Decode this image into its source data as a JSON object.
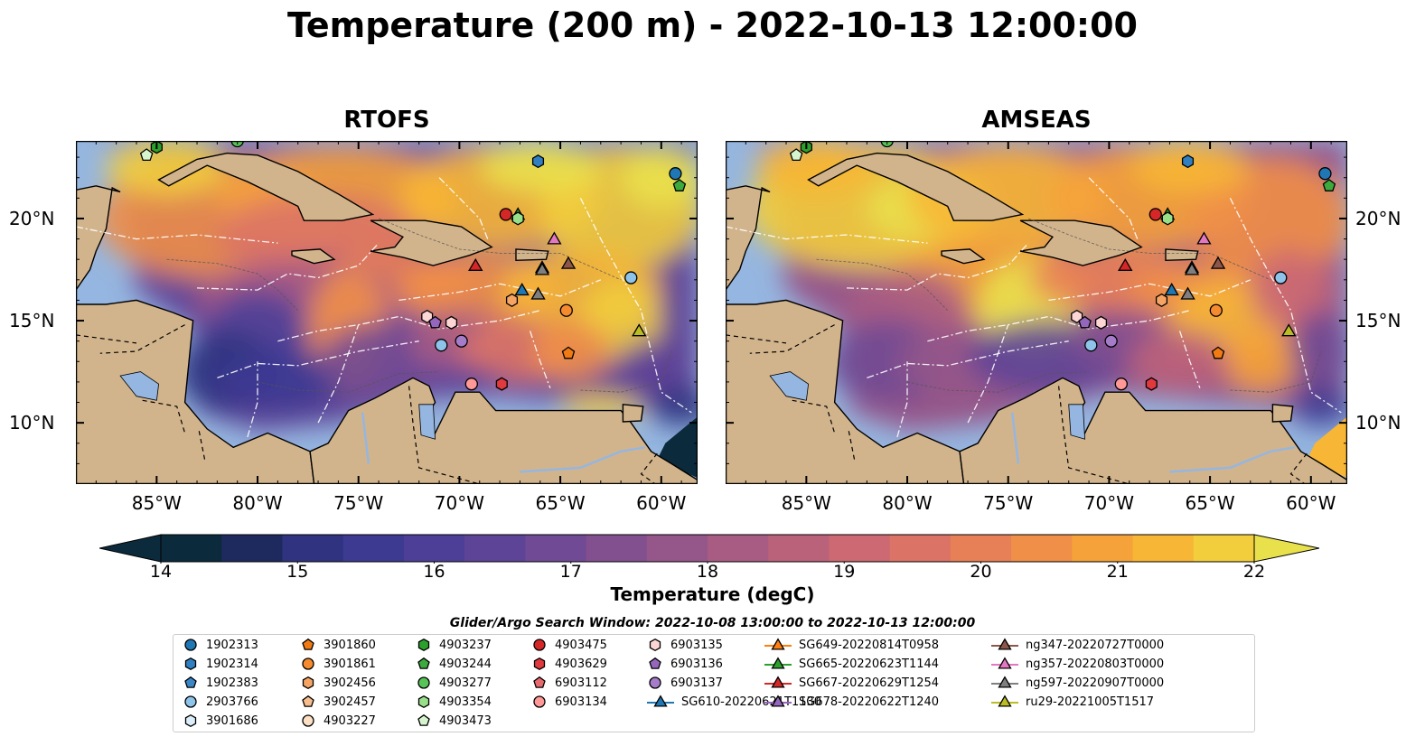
{
  "title": "Temperature (200 m) - 2022-10-13 12:00:00",
  "panels": [
    {
      "title": "RTOFS",
      "id": "rtofs"
    },
    {
      "title": "AMSEAS",
      "id": "amseas"
    }
  ],
  "axes": {
    "lon_ticks": [
      "85°W",
      "80°W",
      "75°W",
      "70°W",
      "65°W",
      "60°W"
    ],
    "lat_ticks": [
      "20°N",
      "15°N",
      "10°N"
    ],
    "lon_range": [
      -89,
      -58.2
    ],
    "lat_range": [
      7,
      23.8
    ]
  },
  "colorbar": {
    "label": "Temperature (degC)",
    "ticks": [
      "14",
      "15",
      "16",
      "17",
      "18",
      "19",
      "20",
      "21",
      "22"
    ],
    "range": [
      14,
      22
    ],
    "colors": [
      "#0b2a3c",
      "#1e2a5e",
      "#2f3380",
      "#3d3a92",
      "#4d3f98",
      "#5e4497",
      "#704a94",
      "#82508f",
      "#955689",
      "#a85c83",
      "#bb627b",
      "#cc6972",
      "#db7366",
      "#e88057",
      "#f08f48",
      "#f5a23a",
      "#f7b635",
      "#f2cd3c",
      "#e9e14c"
    ],
    "ocean_fill": "#95b6e0",
    "land_fill": "#d2b48c"
  },
  "search_window": "Glider/Argo Search Window: 2022-10-08 13:00:00 to 2022-10-13 12:00:00",
  "legend": [
    {
      "label": "1902313",
      "marker": "circle",
      "color": "#1f77b4"
    },
    {
      "label": "1902314",
      "marker": "hexagon",
      "color": "#2f7fc1"
    },
    {
      "label": "1902383",
      "marker": "pentagon",
      "color": "#3a87c8"
    },
    {
      "label": "2903766",
      "marker": "circle",
      "color": "#8ec4ea"
    },
    {
      "label": "3901686",
      "marker": "hexagon",
      "color": "#dceefa"
    },
    {
      "label": "3901860",
      "marker": "pentagon",
      "color": "#f27a12"
    },
    {
      "label": "3901861",
      "marker": "circle",
      "color": "#f58a2e"
    },
    {
      "label": "3902456",
      "marker": "hexagon",
      "color": "#f6a464"
    },
    {
      "label": "3902457",
      "marker": "pentagon",
      "color": "#f8bd8c"
    },
    {
      "label": "4903227",
      "marker": "circle",
      "color": "#fde0c4"
    },
    {
      "label": "4903237",
      "marker": "hexagon",
      "color": "#2ca02c"
    },
    {
      "label": "4903244",
      "marker": "pentagon",
      "color": "#3caa3c"
    },
    {
      "label": "4903277",
      "marker": "circle",
      "color": "#57c457"
    },
    {
      "label": "4903354",
      "marker": "hexagon",
      "color": "#98df8a"
    },
    {
      "label": "4903473",
      "marker": "pentagon",
      "color": "#d6f5cf"
    },
    {
      "label": "4903475",
      "marker": "circle",
      "color": "#d62728"
    },
    {
      "label": "4903629",
      "marker": "hexagon",
      "color": "#e0393e"
    },
    {
      "label": "6903112",
      "marker": "pentagon",
      "color": "#e86a6e"
    },
    {
      "label": "6903134",
      "marker": "circle",
      "color": "#ff9896"
    },
    {
      "label": "6903135",
      "marker": "hexagon",
      "color": "#fcd5d4"
    },
    {
      "label": "6903136",
      "marker": "pentagon",
      "color": "#9467bd"
    },
    {
      "label": "6903137",
      "marker": "circle",
      "color": "#a47cc8"
    },
    {
      "label": "SG610-20220621T1130",
      "marker": "triangle-line",
      "color": "#1f77b4"
    },
    {
      "label": "SG649-20220814T0958",
      "marker": "triangle-line",
      "color": "#ff7f0e"
    },
    {
      "label": "SG665-20220623T1144",
      "marker": "triangle-line",
      "color": "#2ca02c"
    },
    {
      "label": "SG667-20220629T1254",
      "marker": "triangle-line",
      "color": "#d62728"
    },
    {
      "label": "SG678-20220622T1240",
      "marker": "triangle-line",
      "color": "#9467bd"
    },
    {
      "label": "ng347-20220727T0000",
      "marker": "triangle-line",
      "color": "#8c564b"
    },
    {
      "label": "ng357-20220803T0000",
      "marker": "triangle-line",
      "color": "#e377c2"
    },
    {
      "label": "ng597-20220907T0000",
      "marker": "triangle-line",
      "color": "#7f7f7f"
    },
    {
      "label": "ru29-20221005T1517",
      "marker": "triangle-line",
      "color": "#bcbd22"
    }
  ],
  "observations": [
    {
      "id": "1902313",
      "lon": -59.3,
      "lat": 22.2
    },
    {
      "id": "4903244",
      "lon": -59.1,
      "lat": 21.6
    },
    {
      "id": "1902314",
      "lon": -66.1,
      "lat": 22.8
    },
    {
      "id": "4903237",
      "lon": -85.0,
      "lat": 23.5
    },
    {
      "id": "4903473",
      "lon": -85.5,
      "lat": 23.1
    },
    {
      "id": "4903277",
      "lon": -81.0,
      "lat": 23.8
    },
    {
      "id": "4903475",
      "lon": -67.7,
      "lat": 20.2
    },
    {
      "id": "SG665-20220623T1144",
      "lon": -67.1,
      "lat": 20.2
    },
    {
      "id": "4903354",
      "lon": -67.1,
      "lat": 20.0
    },
    {
      "id": "SG667-20220629T1254",
      "lon": -69.2,
      "lat": 17.7
    },
    {
      "id": "ng357-20220803T0000",
      "lon": -65.3,
      "lat": 19.0
    },
    {
      "id": "SG678-20220622T1240",
      "lon": -65.9,
      "lat": 17.6
    },
    {
      "id": "ng347-20220727T0000",
      "lon": -64.6,
      "lat": 17.8
    },
    {
      "id": "ng597-20220907T0000",
      "lon": -65.9,
      "lat": 17.5
    },
    {
      "id": "SG610-20220621T1130",
      "lon": -66.9,
      "lat": 16.5
    },
    {
      "id": "ng597-20220907T0000",
      "lon": -66.1,
      "lat": 16.3
    },
    {
      "id": "3902456",
      "lon": -67.4,
      "lat": 16.0
    },
    {
      "id": "2903766",
      "lon": -61.5,
      "lat": 17.1
    },
    {
      "id": "3901861",
      "lon": -64.7,
      "lat": 15.5
    },
    {
      "id": "6903135",
      "lon": -71.6,
      "lat": 15.2
    },
    {
      "id": "6903136",
      "lon": -71.2,
      "lat": 14.9
    },
    {
      "id": "6903135",
      "lon": -70.4,
      "lat": 14.9
    },
    {
      "id": "2903766",
      "lon": -70.9,
      "lat": 13.8
    },
    {
      "id": "6903137",
      "lon": -69.9,
      "lat": 14.0
    },
    {
      "id": "3901860",
      "lon": -64.6,
      "lat": 13.4
    },
    {
      "id": "ru29-20221005T1517",
      "lon": -61.1,
      "lat": 14.5
    },
    {
      "id": "6903134",
      "lon": -69.4,
      "lat": 11.9
    },
    {
      "id": "4903629",
      "lon": -67.9,
      "lat": 11.9
    }
  ]
}
